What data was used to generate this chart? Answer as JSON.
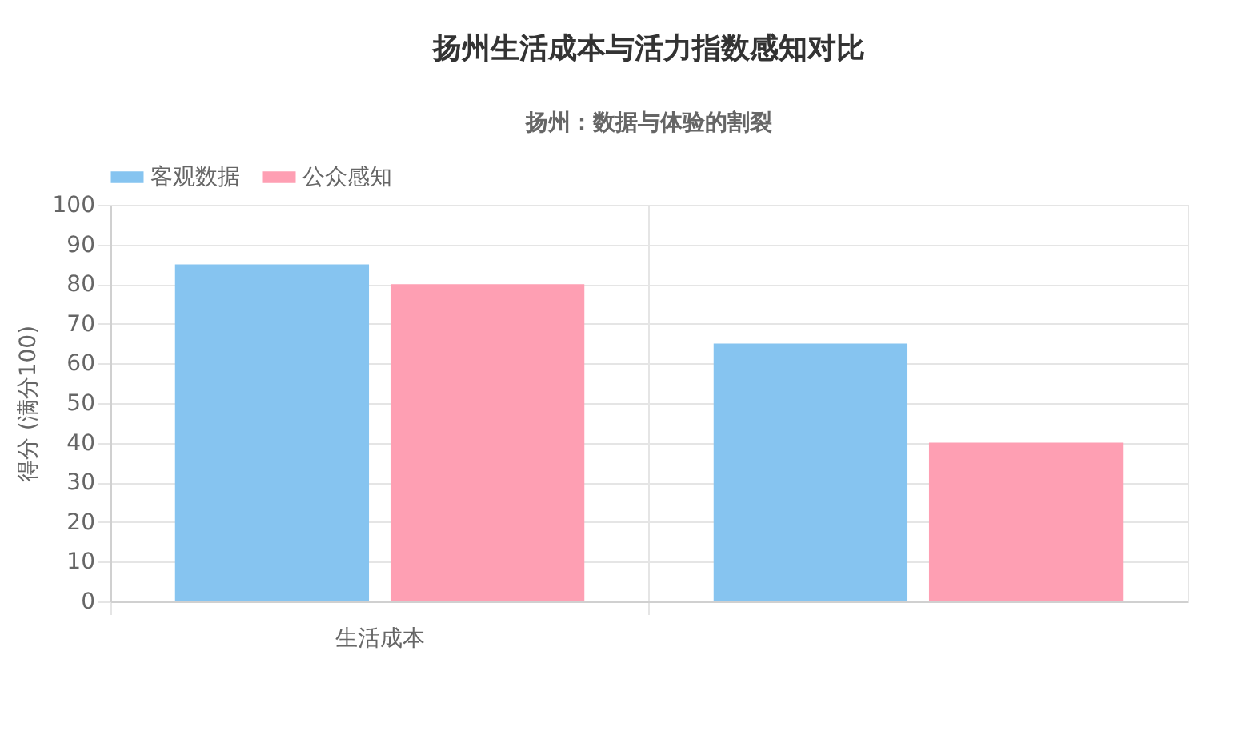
{
  "chart_data": {
    "type": "bar",
    "title": "扬州生活成本与活力指数感知对比",
    "subtitle": "扬州：数据与体验的割裂",
    "ylabel": "得分 (满分100)",
    "categories": [
      "生活成本",
      null
    ],
    "series": [
      {
        "name": "客观数据",
        "color": "#86c4f0",
        "values": [
          85,
          65
        ]
      },
      {
        "name": "公众感知",
        "color": "#fe9fb3",
        "values": [
          80,
          40
        ]
      }
    ],
    "ylim": [
      0,
      100
    ],
    "yticks": [
      0,
      10,
      20,
      30,
      40,
      50,
      60,
      70,
      80,
      90,
      100
    ],
    "grid": true,
    "legend": "top"
  }
}
